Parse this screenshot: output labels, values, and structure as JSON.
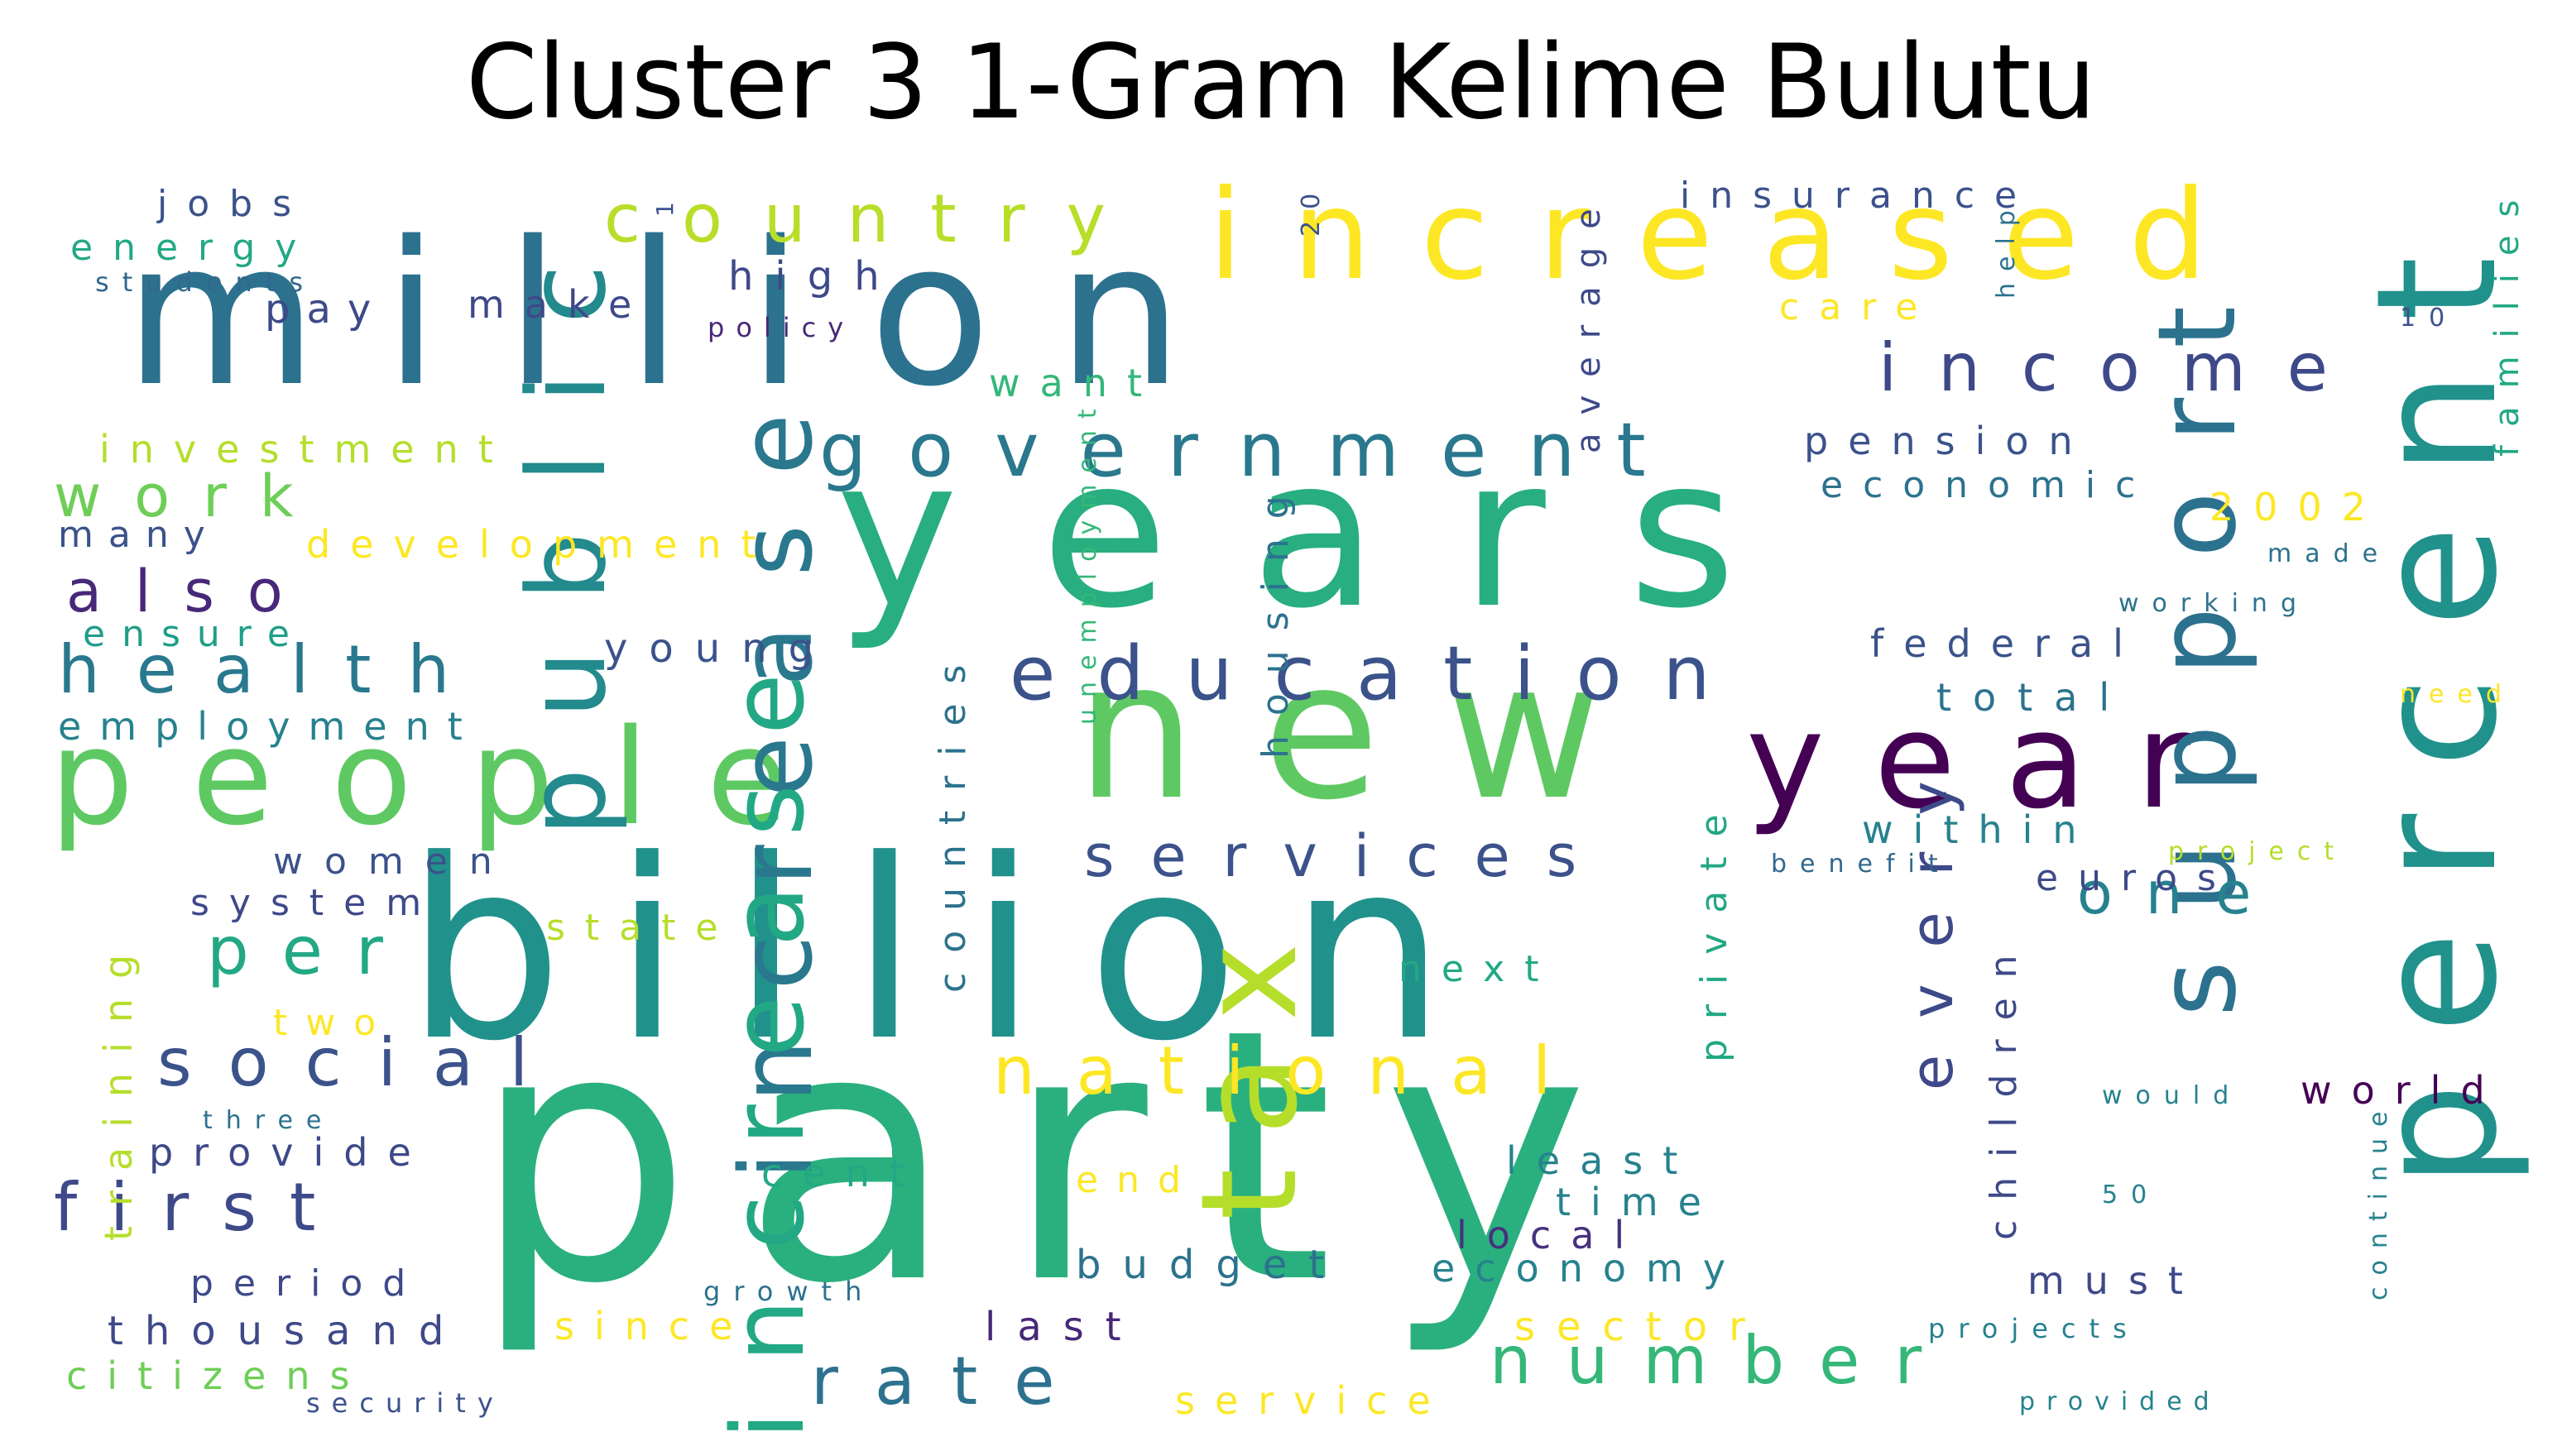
{
  "title": "Cluster 3 1-Gram Kelime Bulutu",
  "palette": {
    "d0": "#440154",
    "d1": "#46327e",
    "d2": "#3b528b",
    "d3": "#31688e",
    "d4": "#26828e",
    "d5": "#1f9e89",
    "d6": "#35b779",
    "d7": "#6ece58",
    "d8": "#b5de2b",
    "d9": "#fde725"
  },
  "words": [
    {
      "id": "party",
      "text": "party",
      "color": "#2ab07f"
    },
    {
      "id": "billion",
      "text": "billion",
      "color": "#21918c"
    },
    {
      "id": "new",
      "text": "new",
      "color": "#5ec962"
    },
    {
      "id": "million",
      "text": "million",
      "color": "#2c728e"
    },
    {
      "id": "years",
      "text": "years",
      "color": "#28ae80"
    },
    {
      "id": "year",
      "text": "year",
      "color": "#440154"
    },
    {
      "id": "people",
      "text": "people",
      "color": "#5ec962"
    },
    {
      "id": "increased",
      "text": "increased",
      "color": "#fde725"
    },
    {
      "id": "percent",
      "text": "percent",
      "color": "#21918c"
    },
    {
      "id": "tax",
      "text": "tax",
      "color": "#b5de2b"
    },
    {
      "id": "increase-1",
      "text": "increase",
      "color": "#2a788e"
    },
    {
      "id": "increase-2",
      "text": "increase",
      "color": "#22a884"
    },
    {
      "id": "public",
      "text": "public",
      "color": "#238a8d"
    },
    {
      "id": "support",
      "text": "support",
      "color": "#2c728e"
    },
    {
      "id": "government",
      "text": "government",
      "color": "#2a788e"
    },
    {
      "id": "education",
      "text": "education",
      "color": "#3b528b"
    },
    {
      "id": "country",
      "text": "country",
      "color": "#b8de29"
    },
    {
      "id": "income",
      "text": "income",
      "color": "#3e4989"
    },
    {
      "id": "national",
      "text": "national",
      "color": "#fde725"
    },
    {
      "id": "services",
      "text": "services",
      "color": "#3b528b"
    },
    {
      "id": "number",
      "text": "number",
      "color": "#35b779"
    },
    {
      "id": "rate",
      "text": "rate",
      "color": "#2c728e"
    },
    {
      "id": "social",
      "text": "social",
      "color": "#3b528b"
    },
    {
      "id": "health",
      "text": "health",
      "color": "#2a788e"
    },
    {
      "id": "per",
      "text": "per",
      "color": "#22a884"
    },
    {
      "id": "first",
      "text": "first",
      "color": "#3e4989"
    },
    {
      "id": "also",
      "text": "also",
      "color": "#482878"
    },
    {
      "id": "work",
      "text": "work",
      "color": "#6ece58"
    },
    {
      "id": "every",
      "text": "every",
      "color": "#3e4989"
    },
    {
      "id": "one",
      "text": "one",
      "color": "#26828e"
    },
    {
      "id": "high",
      "text": "high",
      "color": "#3e4989"
    },
    {
      "id": "jobs",
      "text": "jobs",
      "color": "#3b528b"
    },
    {
      "id": "energy",
      "text": "energy",
      "color": "#22a884"
    },
    {
      "id": "students",
      "text": "students",
      "color": "#31688e"
    },
    {
      "id": "pay",
      "text": "pay",
      "color": "#3e4989"
    },
    {
      "id": "make",
      "text": "make",
      "color": "#3e4989"
    },
    {
      "id": "policy",
      "text": "policy",
      "color": "#482878"
    },
    {
      "id": "investment",
      "text": "investment",
      "color": "#b5de2b"
    },
    {
      "id": "many",
      "text": "many",
      "color": "#3b528b"
    },
    {
      "id": "development",
      "text": "development",
      "color": "#fde725"
    },
    {
      "id": "ensure",
      "text": "ensure",
      "color": "#1f9e89"
    },
    {
      "id": "employment",
      "text": "employment",
      "color": "#26828e"
    },
    {
      "id": "young",
      "text": "young",
      "color": "#3b528b"
    },
    {
      "id": "women",
      "text": "women",
      "color": "#3b528b"
    },
    {
      "id": "system",
      "text": "system",
      "color": "#3e4989"
    },
    {
      "id": "state",
      "text": "state",
      "color": "#b5de2b"
    },
    {
      "id": "two",
      "text": "two",
      "color": "#fde725"
    },
    {
      "id": "three",
      "text": "three",
      "color": "#2c728e"
    },
    {
      "id": "provide",
      "text": "provide",
      "color": "#3e4989"
    },
    {
      "id": "training",
      "text": "training",
      "color": "#b5de2b"
    },
    {
      "id": "period",
      "text": "period",
      "color": "#3e4989"
    },
    {
      "id": "thousand",
      "text": "thousand",
      "color": "#3e4989"
    },
    {
      "id": "citizens",
      "text": "citizens",
      "color": "#6ece58"
    },
    {
      "id": "security",
      "text": "security",
      "color": "#3b528b"
    },
    {
      "id": "since",
      "text": "since",
      "color": "#fde725"
    },
    {
      "id": "growth",
      "text": "growth",
      "color": "#2c728e"
    },
    {
      "id": "last",
      "text": "last",
      "color": "#482878"
    },
    {
      "id": "budget",
      "text": "budget",
      "color": "#2c728e"
    },
    {
      "id": "service",
      "text": "service",
      "color": "#fde725"
    },
    {
      "id": "end",
      "text": "end",
      "color": "#fde725"
    },
    {
      "id": "cent",
      "text": "cent",
      "color": "#22a884"
    },
    {
      "id": "countries",
      "text": "countries",
      "color": "#2c728e"
    },
    {
      "id": "unemployment",
      "text": "unemployment",
      "color": "#35b779"
    },
    {
      "id": "housing",
      "text": "housing",
      "color": "#2c728e"
    },
    {
      "id": "next",
      "text": "next",
      "color": "#22a884"
    },
    {
      "id": "least",
      "text": "least",
      "color": "#26828e"
    },
    {
      "id": "time",
      "text": "time",
      "color": "#26828e"
    },
    {
      "id": "local",
      "text": "local",
      "color": "#46327e"
    },
    {
      "id": "economy",
      "text": "economy",
      "color": "#26828e"
    },
    {
      "id": "sector",
      "text": "sector",
      "color": "#fde725"
    },
    {
      "id": "private",
      "text": "private",
      "color": "#22a884"
    },
    {
      "id": "children",
      "text": "children",
      "color": "#3e4989"
    },
    {
      "id": "must",
      "text": "must",
      "color": "#3e4989"
    },
    {
      "id": "projects",
      "text": "projects",
      "color": "#26828e"
    },
    {
      "id": "provided",
      "text": "provided",
      "color": "#26828e"
    },
    {
      "id": "continue",
      "text": "continue",
      "color": "#26828e"
    },
    {
      "id": "world",
      "text": "world",
      "color": "#440154"
    },
    {
      "id": "would",
      "text": "would",
      "color": "#26828e"
    },
    {
      "id": "50",
      "text": "50",
      "color": "#26828e"
    },
    {
      "id": "within",
      "text": "within",
      "color": "#26828e"
    },
    {
      "id": "euros",
      "text": "euros",
      "color": "#3e4989"
    },
    {
      "id": "benefit",
      "text": "benefit",
      "color": "#31688e"
    },
    {
      "id": "project",
      "text": "project",
      "color": "#b5de2b"
    },
    {
      "id": "federal",
      "text": "federal",
      "color": "#3b528b"
    },
    {
      "id": "total",
      "text": "total",
      "color": "#2c728e"
    },
    {
      "id": "need",
      "text": "need",
      "color": "#fde725"
    },
    {
      "id": "working",
      "text": "working",
      "color": "#2c728e"
    },
    {
      "id": "made",
      "text": "made",
      "color": "#2c728e"
    },
    {
      "id": "2002",
      "text": "2002",
      "color": "#fde725"
    },
    {
      "id": "economic",
      "text": "economic",
      "color": "#2c728e"
    },
    {
      "id": "pension",
      "text": "pension",
      "color": "#3b528b"
    },
    {
      "id": "average",
      "text": "average",
      "color": "#3e4989"
    },
    {
      "id": "care",
      "text": "care",
      "color": "#fde725"
    },
    {
      "id": "insurance",
      "text": "insurance",
      "color": "#3b528b"
    },
    {
      "id": "help",
      "text": "help",
      "color": "#2c728e"
    },
    {
      "id": "10",
      "text": "10",
      "color": "#3b528b"
    },
    {
      "id": "families",
      "text": "families",
      "color": "#22a884"
    },
    {
      "id": "20",
      "text": "20",
      "color": "#3b528b"
    },
    {
      "id": "1",
      "text": "1",
      "color": "#3b528b"
    },
    {
      "id": "want",
      "text": "want",
      "color": "#35b779"
    }
  ]
}
